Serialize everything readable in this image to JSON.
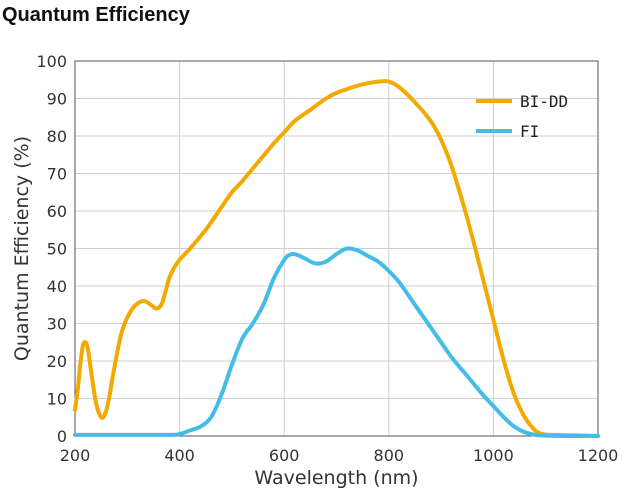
{
  "page_title": "Quantum Efficiency",
  "chart_data": {
    "type": "line",
    "xlabel": "Wavelength (nm)",
    "ylabel": "Quantum Efficiency (%)",
    "xlim": [
      200,
      1200
    ],
    "ylim": [
      0,
      100
    ],
    "xticks": [
      200,
      400,
      600,
      800,
      1000,
      1200
    ],
    "yticks": [
      0,
      10,
      20,
      30,
      40,
      50,
      60,
      70,
      80,
      90,
      100
    ],
    "grid": true,
    "legend_position": "top-right",
    "series": [
      {
        "name": "BI-DD",
        "color": "#f2a900",
        "x": [
          200,
          205,
          210,
          215,
          220,
          225,
          230,
          240,
          250,
          258,
          265,
          275,
          290,
          310,
          330,
          345,
          355,
          365,
          372,
          380,
          390,
          400,
          420,
          450,
          480,
          500,
          520,
          550,
          580,
          600,
          620,
          650,
          680,
          700,
          720,
          750,
          780,
          800,
          820,
          850,
          880,
          900,
          920,
          950,
          980,
          1000,
          1020,
          1040,
          1060,
          1080,
          1095,
          1110,
          1150,
          1200
        ],
        "y": [
          7,
          12,
          19,
          24,
          25,
          23,
          18,
          9,
          5,
          6,
          10,
          18,
          28,
          34,
          36,
          35,
          34,
          35,
          38,
          42,
          45,
          47,
          50,
          55,
          61,
          65,
          68,
          73,
          78,
          81,
          84,
          87,
          90,
          91.5,
          92.5,
          93.8,
          94.5,
          94.5,
          93,
          89,
          84,
          79,
          72,
          58,
          42,
          31,
          20,
          11,
          5,
          1.5,
          0.5,
          0.3,
          0.2,
          0
        ]
      },
      {
        "name": "FI",
        "color": "#45bce8",
        "x": [
          200,
          300,
          380,
          400,
          420,
          440,
          460,
          480,
          500,
          520,
          540,
          560,
          580,
          600,
          610,
          620,
          630,
          640,
          660,
          680,
          700,
          720,
          740,
          760,
          780,
          800,
          820,
          850,
          880,
          900,
          920,
          950,
          980,
          1000,
          1020,
          1040,
          1060,
          1080,
          1100,
          1150,
          1200
        ],
        "y": [
          0.3,
          0.3,
          0.3,
          0.5,
          1.5,
          2.5,
          5,
          11,
          19,
          26,
          30,
          35,
          42,
          47,
          48.3,
          48.5,
          48,
          47.3,
          46,
          46.5,
          48.5,
          50,
          49.5,
          48,
          46.5,
          44,
          41,
          35,
          29,
          25,
          21,
          16,
          11,
          8,
          5,
          2.5,
          1,
          0.3,
          0.1,
          0,
          0
        ]
      }
    ]
  }
}
